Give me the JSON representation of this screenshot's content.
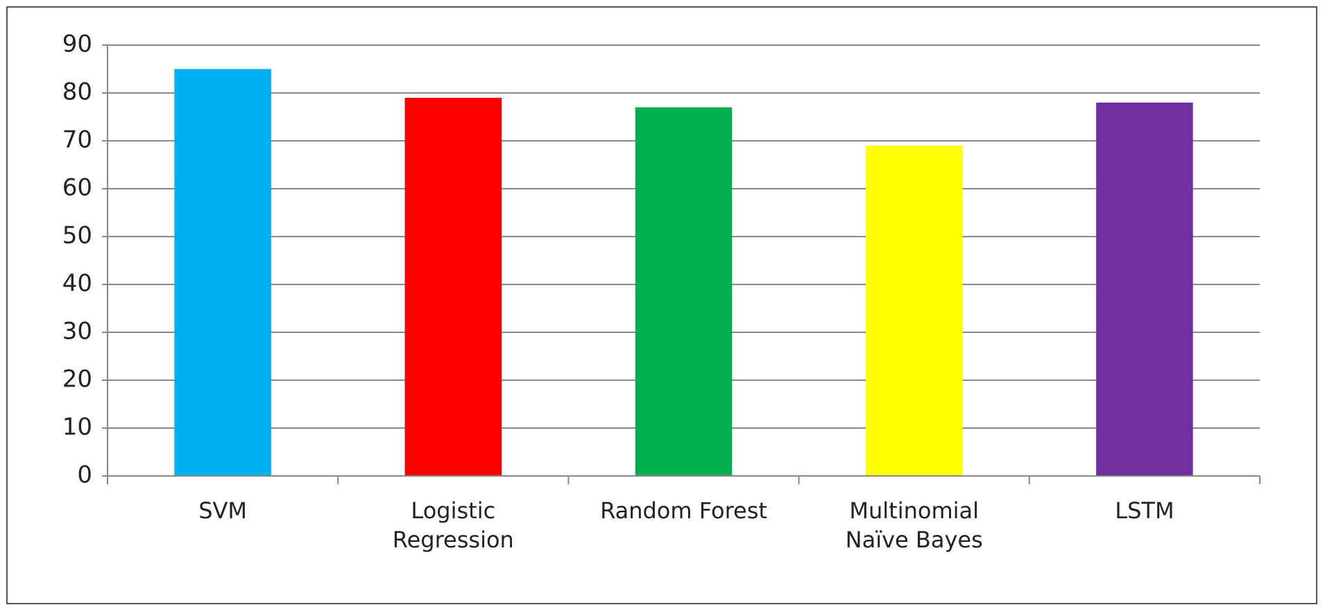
{
  "chart_data": {
    "type": "bar",
    "categories": [
      [
        "SVM"
      ],
      [
        "Logistic",
        "Regression"
      ],
      [
        "Random Forest"
      ],
      [
        "Multinomial",
        "Naïve Bayes"
      ],
      [
        "LSTM"
      ]
    ],
    "values": [
      85,
      79,
      77,
      69,
      78
    ],
    "colors": [
      "#00b0f0",
      "#ff0000",
      "#00b050",
      "#ffff00",
      "#7030a0"
    ],
    "ylim": [
      0,
      90
    ],
    "yticks": [
      0,
      10,
      20,
      30,
      40,
      50,
      60,
      70,
      80,
      90
    ],
    "grid": true
  }
}
